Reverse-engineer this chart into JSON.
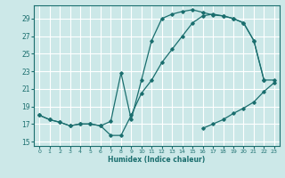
{
  "xlabel": "Humidex (Indice chaleur)",
  "background_color": "#cce8e8",
  "grid_color": "#ffffff",
  "line_color": "#1a6e6e",
  "xlim": [
    -0.5,
    23.5
  ],
  "ylim": [
    14.5,
    30.5
  ],
  "yticks": [
    15,
    17,
    19,
    21,
    23,
    25,
    27,
    29
  ],
  "xticks": [
    0,
    1,
    2,
    3,
    4,
    5,
    6,
    7,
    8,
    9,
    10,
    11,
    12,
    13,
    14,
    15,
    16,
    17,
    18,
    19,
    20,
    21,
    22,
    23
  ],
  "line1_x": [
    0,
    1,
    2,
    3,
    4,
    5,
    6,
    7,
    8,
    9,
    10,
    11,
    12,
    13,
    14,
    15,
    16,
    17,
    18,
    19,
    20,
    21,
    22
  ],
  "line1_y": [
    18.0,
    17.5,
    17.2,
    16.8,
    17.0,
    17.0,
    16.8,
    17.3,
    22.8,
    17.5,
    22.0,
    26.5,
    29.0,
    29.5,
    29.8,
    30.0,
    29.7,
    29.4,
    29.3,
    29.0,
    28.5,
    26.5,
    22.0
  ],
  "line2_x": [
    0,
    1,
    2,
    3,
    4,
    5,
    6,
    7,
    8,
    9,
    10,
    11,
    12,
    13,
    14,
    15,
    16,
    17,
    18,
    19,
    20,
    21,
    22,
    23
  ],
  "line2_y": [
    18.0,
    17.5,
    17.2,
    16.8,
    17.0,
    17.0,
    16.8,
    15.7,
    15.7,
    18.0,
    20.5,
    22.0,
    24.0,
    25.5,
    27.0,
    28.5,
    29.3,
    29.5,
    29.3,
    29.0,
    28.5,
    26.5,
    22.0,
    22.0
  ],
  "line3_x": [
    16,
    17,
    18,
    19,
    20,
    21,
    22,
    23
  ],
  "line3_y": [
    16.5,
    17.0,
    17.5,
    18.2,
    18.8,
    19.5,
    20.7,
    21.7
  ]
}
